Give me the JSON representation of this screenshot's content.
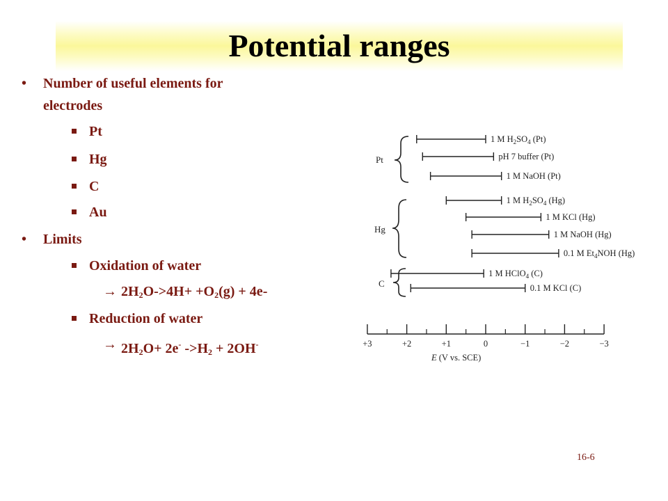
{
  "slide": {
    "title": "Potential ranges",
    "page_number": "16-6",
    "bullets": {
      "item1": "Number of useful elements for",
      "item1_cont": "electrodes",
      "pt": "Pt",
      "hg": "Hg",
      "c": "C",
      "au": "Au",
      "limits": "Limits",
      "ox_water": "Oxidation of water",
      "ox_eq": {
        "a": "2H",
        "b": "2",
        "c": "O->4H+ +O",
        "d": "2",
        "e": "(g) + 4e-"
      },
      "red_water": "Reduction of water",
      "red_eq": {
        "a": "2H",
        "b": "2",
        "c": "O+ 2e",
        "d": "-",
        "e": " ->H",
        "f": "2",
        "g": " + 2OH",
        "h": "-"
      }
    }
  },
  "figure": {
    "groups": [
      "Pt",
      "Hg",
      "C"
    ],
    "ranges": [
      {
        "group": "Pt",
        "label_pre": "1 M H",
        "label_sub": "2",
        "label_post": "SO",
        "label_sub2": "4",
        "label_end": " (Pt)",
        "from": 1.75,
        "to": 0.0
      },
      {
        "group": "Pt",
        "label_pre": "pH 7 buffer (Pt)",
        "from": 1.6,
        "to": -0.2
      },
      {
        "group": "Pt",
        "label_pre": "1 M NaOH (Pt)",
        "from": 1.4,
        "to": -0.4
      },
      {
        "group": "Hg",
        "label_pre": "1 M H",
        "label_sub": "2",
        "label_post": "SO",
        "label_sub2": "4",
        "label_end": " (Hg)",
        "from": 1.0,
        "to": -0.4
      },
      {
        "group": "Hg",
        "label_pre": "1 M KCl (Hg)",
        "from": 0.5,
        "to": -1.4
      },
      {
        "group": "Hg",
        "label_pre": "1 M NaOH (Hg)",
        "from": 0.35,
        "to": -1.6
      },
      {
        "group": "Hg",
        "label_pre": "0.1 M Et",
        "label_sub": "4",
        "label_post": "NOH (Hg)",
        "from": 0.35,
        "to": -1.85
      },
      {
        "group": "C",
        "label_pre": "1 M HClO",
        "label_sub": "4",
        "label_end": " (C)",
        "from": 2.4,
        "to": 0.05
      },
      {
        "group": "C",
        "label_pre": "0.1 M KCl (C)",
        "from": 1.9,
        "to": -1.0
      }
    ],
    "axis": {
      "ticks": [
        "+3",
        "+2",
        "+1",
        "0",
        "−1",
        "−2",
        "−3"
      ],
      "label_e": "E",
      "label_rest": " (V vs. SCE)"
    }
  }
}
